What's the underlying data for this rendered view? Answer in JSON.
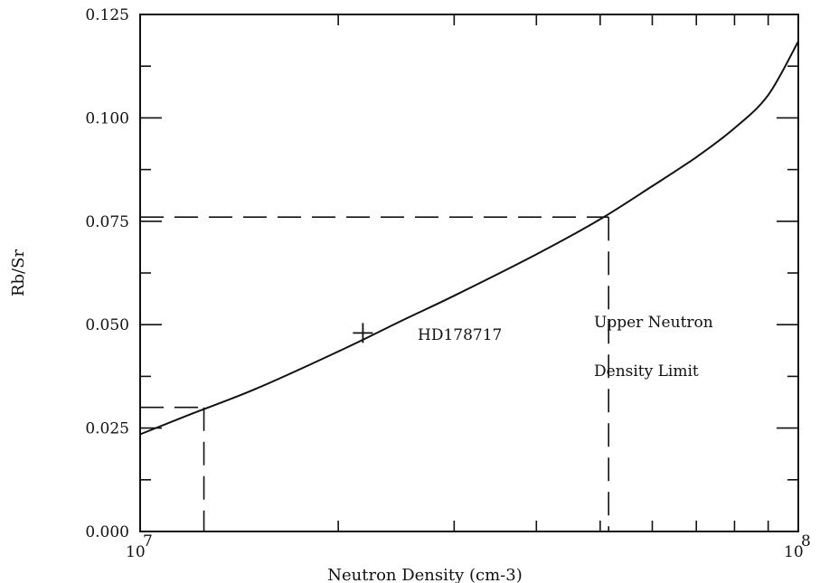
{
  "chart_data": {
    "type": "line",
    "title": "",
    "xlabel": "Neutron Density (cm-3)",
    "ylabel": "Rb/Sr",
    "xscale": "log",
    "xlim": [
      10000000,
      100000000
    ],
    "ylim": [
      0,
      0.125
    ],
    "grid": false,
    "x_tick_labels": [
      {
        "value": 10000000,
        "base": "10",
        "exp": "7"
      },
      {
        "value": 100000000,
        "base": "10",
        "exp": "8"
      }
    ],
    "x_minor_ticks": [
      20000000,
      30000000,
      40000000,
      50000000,
      60000000,
      70000000,
      80000000,
      90000000
    ],
    "y_ticks": [
      0,
      0.025,
      0.05,
      0.075,
      0.1,
      0.125
    ],
    "y_tick_labels": [
      "0.000",
      "0.025",
      "0.050",
      "0.075",
      "0.100",
      "0.125"
    ],
    "y_minor_ticks": [
      0.0125,
      0.0375,
      0.0625,
      0.0875,
      0.1125
    ],
    "series": [
      {
        "x": [
          10000000,
          12000000,
          15000000,
          20000000,
          25000000,
          30000000,
          40000000,
          50000000,
          60000000,
          70000000,
          80000000,
          90000000,
          100000000
        ],
        "y": [
          0.0235,
          0.0285,
          0.0345,
          0.0435,
          0.051,
          0.057,
          0.067,
          0.0755,
          0.0835,
          0.0905,
          0.0975,
          0.1055,
          0.1185
        ]
      }
    ],
    "marker": {
      "label": "HD178717",
      "x": 21800000,
      "y": 0.048
    },
    "dashed_lines": [
      {
        "x": 12500000,
        "y": 0.03
      },
      {
        "x": 51500000,
        "y": 0.076
      }
    ],
    "annotations": [
      "Upper Neutron",
      "Density Limit"
    ]
  }
}
